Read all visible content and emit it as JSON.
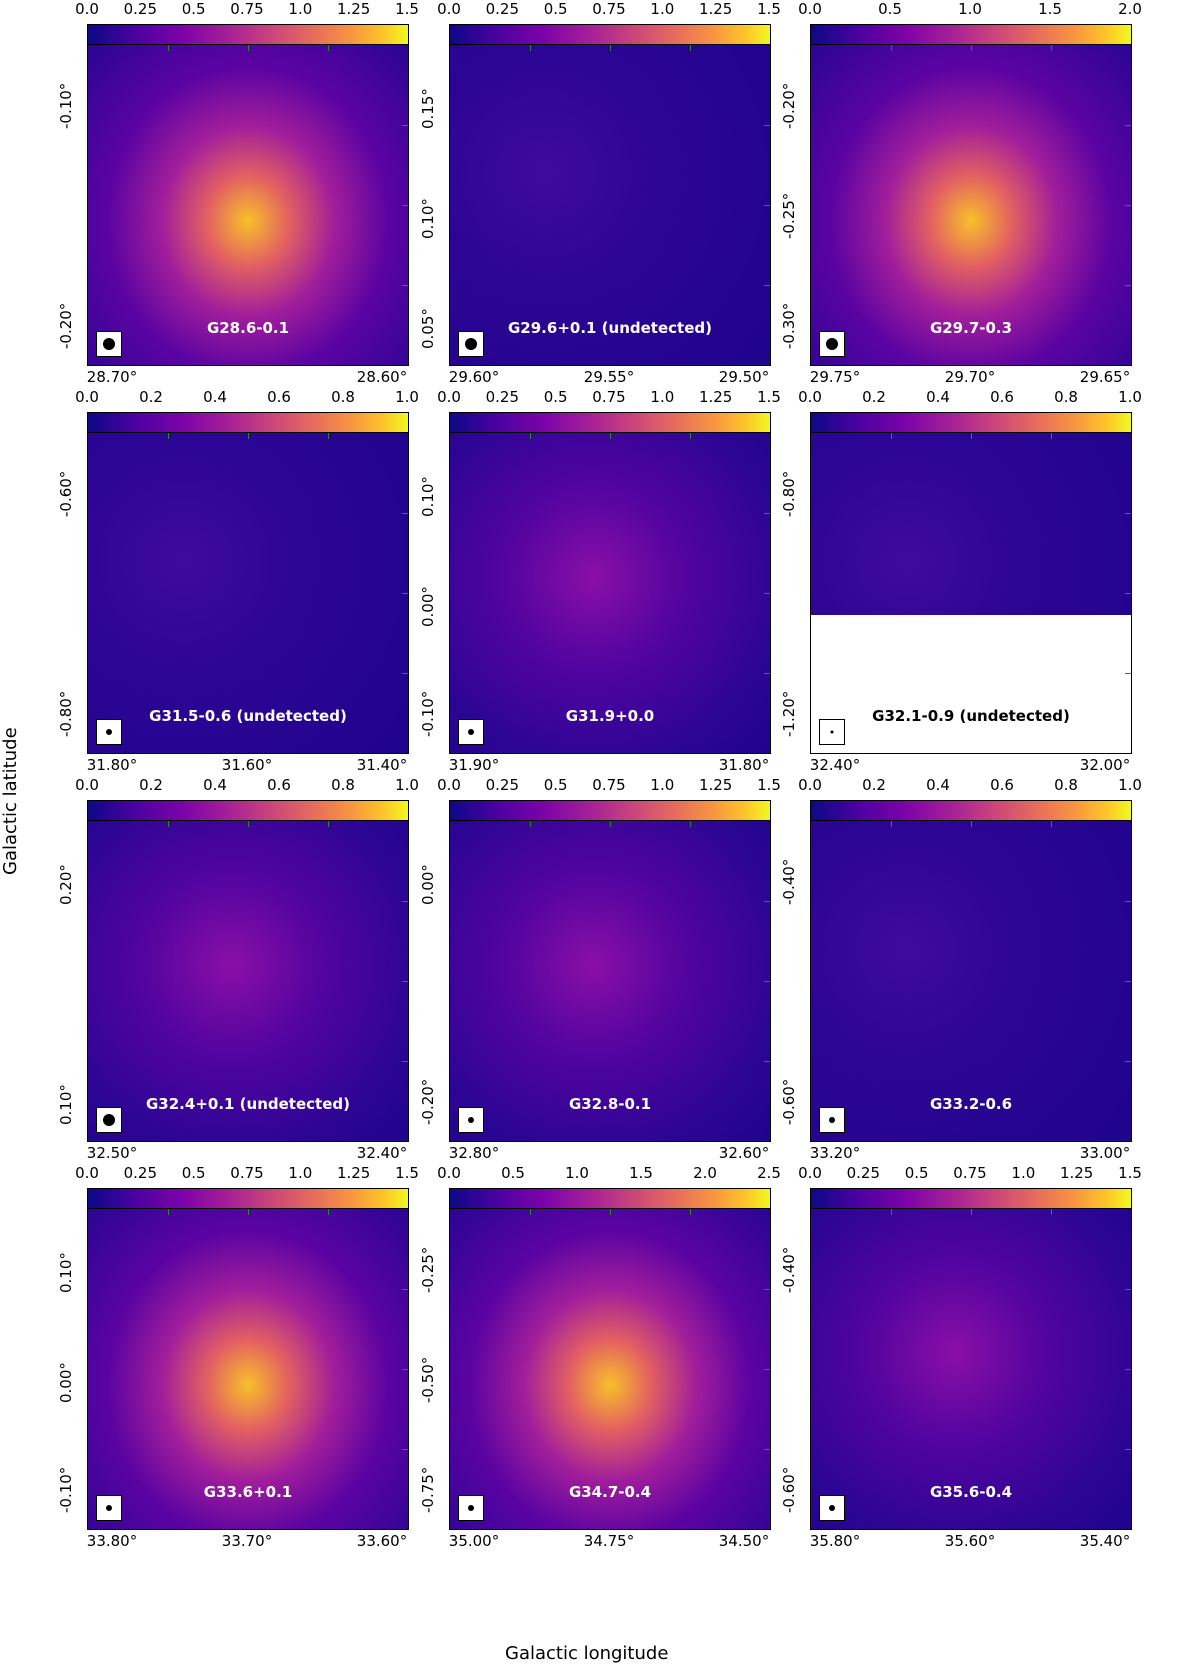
{
  "axis_titles": {
    "x": "Galactic longitude",
    "y": "Galactic latitude"
  },
  "panels": [
    {
      "label": "G28.6-0.1",
      "cbar": [
        "0.0",
        "0.25",
        "0.5",
        "0.75",
        "1.0",
        "1.25",
        "1.5"
      ],
      "xticks": [
        "28.70°",
        "28.60°"
      ],
      "yticks": [
        "-0.10°",
        "-0.20°"
      ],
      "beam": "large",
      "tone": "bright"
    },
    {
      "label": "G29.6+0.1 (undetected)",
      "cbar": [
        "0.0",
        "0.25",
        "0.5",
        "0.75",
        "1.0",
        "1.25",
        "1.5"
      ],
      "xticks": [
        "29.60°",
        "29.55°",
        "29.50°"
      ],
      "yticks": [
        "0.15°",
        "0.10°",
        "0.05°"
      ],
      "beam": "large",
      "tone": "dark"
    },
    {
      "label": "G29.7-0.3",
      "cbar": [
        "0.0",
        "0.5",
        "1.0",
        "1.5",
        "2.0"
      ],
      "xticks": [
        "29.75°",
        "29.70°",
        "29.65°"
      ],
      "yticks": [
        "-0.20°",
        "-0.25°",
        "-0.30°"
      ],
      "beam": "large",
      "tone": "bright"
    },
    {
      "label": "G31.5-0.6 (undetected)",
      "cbar": [
        "0.0",
        "0.2",
        "0.4",
        "0.6",
        "0.8",
        "1.0"
      ],
      "xticks": [
        "31.80°",
        "31.60°",
        "31.40°"
      ],
      "yticks": [
        "-0.60°",
        "-0.80°"
      ],
      "beam": "small",
      "tone": "dark"
    },
    {
      "label": "G31.9+0.0",
      "cbar": [
        "0.0",
        "0.25",
        "0.5",
        "0.75",
        "1.0",
        "1.25",
        "1.5"
      ],
      "xticks": [
        "31.90°",
        "31.80°"
      ],
      "yticks": [
        "0.10°",
        "0.00°",
        "-0.10°"
      ],
      "beam": "small",
      "tone": "mid"
    },
    {
      "label": "G32.1-0.9 (undetected)",
      "cbar": [
        "0.0",
        "0.2",
        "0.4",
        "0.6",
        "0.8",
        "1.0"
      ],
      "xticks": [
        "32.40°",
        "32.00°"
      ],
      "yticks": [
        "-0.80°",
        "-1.20°"
      ],
      "beam": "tiny",
      "tone": "dark",
      "blank": true
    },
    {
      "label": "G32.4+0.1 (undetected)",
      "cbar": [
        "0.0",
        "0.2",
        "0.4",
        "0.6",
        "0.8",
        "1.0"
      ],
      "xticks": [
        "32.50°",
        "32.40°"
      ],
      "yticks": [
        "0.20°",
        "0.10°"
      ],
      "beam": "large",
      "tone": "mid"
    },
    {
      "label": "G32.8-0.1",
      "cbar": [
        "0.0",
        "0.25",
        "0.5",
        "0.75",
        "1.0",
        "1.25",
        "1.5"
      ],
      "xticks": [
        "32.80°",
        "32.60°"
      ],
      "yticks": [
        "0.00°",
        "-0.20°"
      ],
      "beam": "small",
      "tone": "mid"
    },
    {
      "label": "G33.2-0.6",
      "cbar": [
        "0.0",
        "0.2",
        "0.4",
        "0.6",
        "0.8",
        "1.0"
      ],
      "xticks": [
        "33.20°",
        "33.00°"
      ],
      "yticks": [
        "-0.40°",
        "-0.60°"
      ],
      "beam": "small",
      "tone": "dark"
    },
    {
      "label": "G33.6+0.1",
      "cbar": [
        "0.0",
        "0.25",
        "0.5",
        "0.75",
        "1.0",
        "1.25",
        "1.5"
      ],
      "xticks": [
        "33.80°",
        "33.70°",
        "33.60°"
      ],
      "yticks": [
        "0.10°",
        "0.00°",
        "-0.10°"
      ],
      "beam": "small",
      "tone": "bright"
    },
    {
      "label": "G34.7-0.4",
      "cbar": [
        "0.0",
        "0.5",
        "1.0",
        "1.5",
        "2.0",
        "2.5"
      ],
      "xticks": [
        "35.00°",
        "34.75°",
        "34.50°"
      ],
      "yticks": [
        "-0.25°",
        "-0.50°",
        "-0.75°"
      ],
      "beam": "small",
      "tone": "bright"
    },
    {
      "label": "G35.6-0.4",
      "cbar": [
        "0.0",
        "0.25",
        "0.5",
        "0.75",
        "1.0",
        "1.25",
        "1.5"
      ],
      "xticks": [
        "35.80°",
        "35.60°",
        "35.40°"
      ],
      "yticks": [
        "-0.40°",
        "-0.60°"
      ],
      "beam": "small",
      "tone": "mid"
    }
  ]
}
